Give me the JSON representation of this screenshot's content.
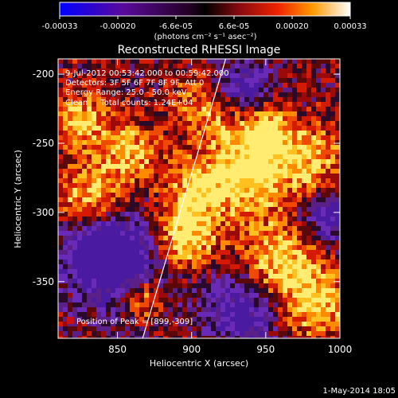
{
  "chart_data": {
    "type": "heatmap",
    "title": "Reconstructed RHESSI Image",
    "colorbar": {
      "ticks": [
        "-0.00033",
        "-0.00020",
        "-6.6e-05",
        "6.6e-05",
        "0.00020",
        "0.00033"
      ],
      "unit_label": "(photons cm⁻² s⁻¹ asec⁻²)",
      "range": [
        -0.00033,
        0.00033
      ]
    },
    "xlabel": "Heliocentric X (arcsec)",
    "ylabel": "Heliocentric Y (arcsec)",
    "xlim": [
      810,
      1000
    ],
    "ylim": [
      -391,
      -189
    ],
    "xticks": [
      "850",
      "900",
      "950",
      "1000"
    ],
    "yticks": [
      "-200",
      "-250",
      "-300",
      "-350"
    ],
    "info": [
      "9-Jul-2012 00:53:42.000 to 00:59:42.000",
      "Detectors: 3F 5F 6F 7F 8F 9F, Att 0",
      "Energy Range: 25.0 - 50.0 keV",
      "Clean     Total counts: 1.24E+04"
    ],
    "peak_label": "Position of Peak = [899,-309]",
    "peak": [
      899,
      -309
    ],
    "limb_line": [
      [
        867,
        -391
      ],
      [
        923,
        -189
      ]
    ],
    "footer": "1-May-2014 18:05",
    "colors": {
      "limb": "#ffffff",
      "peak_marker": "#cc1010"
    }
  }
}
